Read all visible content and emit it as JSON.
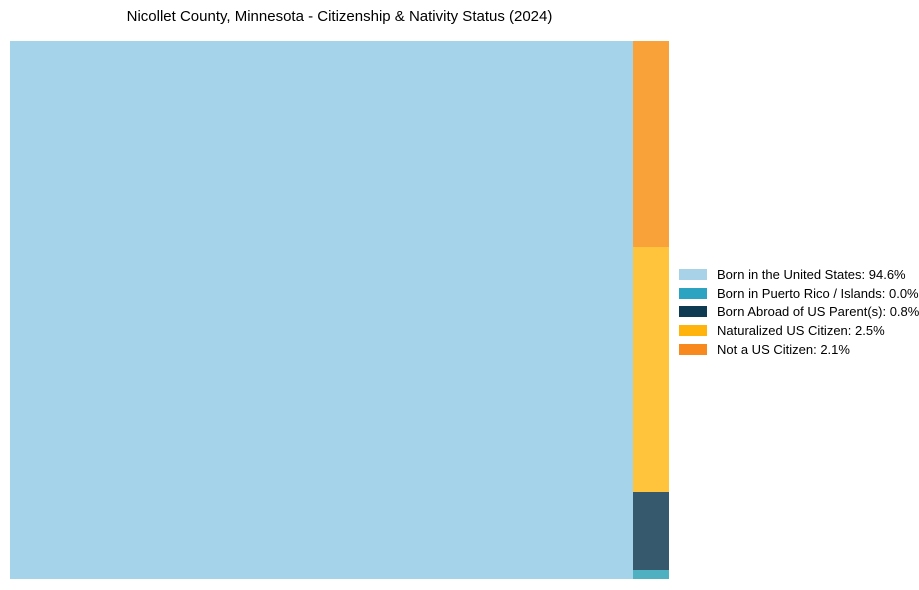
{
  "chart_data": {
    "type": "treemap",
    "title": "Nicollet County, Minnesota - Citizenship & Nativity Status (2024)",
    "unit": "%",
    "legend_position": "center right",
    "grid": false,
    "items": [
      {
        "label": "Born in the United States",
        "value_pct": 94.6,
        "legend_label": "Born in the United States: 94.6%",
        "share_for_layout": 94.6,
        "block_color": "#A5D3E9",
        "legend_color": "#A7D2E8"
      },
      {
        "label": "Born in Puerto Rico / Islands",
        "value_pct": 0.0,
        "legend_label": "Born in Puerto Rico / Islands: 0.0%",
        "share_for_layout": 0.09,
        "block_color": "#4FB0C2",
        "legend_color": "#2CA3C0"
      },
      {
        "label": "Born Abroad of US Parent(s)",
        "value_pct": 0.8,
        "legend_label": "Born Abroad of US Parent(s): 0.8%",
        "share_for_layout": 0.8,
        "block_color": "#37596E",
        "legend_color": "#0E3A52"
      },
      {
        "label": "Naturalized US Citizen",
        "value_pct": 2.5,
        "legend_label": "Naturalized US Citizen: 2.5%",
        "share_for_layout": 2.5,
        "block_color": "#FFC43B",
        "legend_color": "#FFB30D"
      },
      {
        "label": "Not a US Citizen",
        "value_pct": 2.1,
        "legend_label": "Not a US Citizen: 2.1%",
        "share_for_layout": 2.1,
        "block_color": "#F9A23A",
        "legend_color": "#F8891E"
      }
    ]
  }
}
